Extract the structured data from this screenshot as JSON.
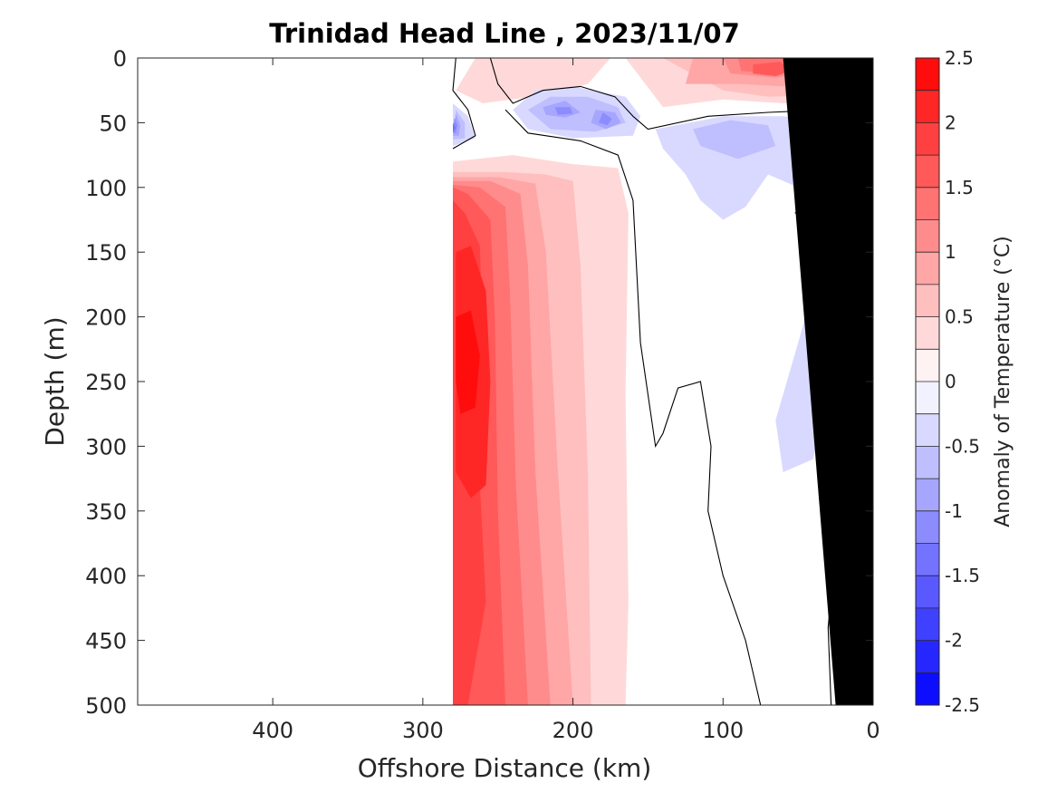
{
  "chart_data": {
    "type": "heatmap",
    "title": "Trinidad Head Line , 2023/11/07",
    "xlabel": "Offshore Distance (km)",
    "ylabel": "Depth (m)",
    "xlim": [
      490,
      0
    ],
    "ylim": [
      0,
      500
    ],
    "x_reversed": true,
    "y_reversed": true,
    "xticks": [
      400,
      300,
      200,
      100,
      0
    ],
    "yticks": [
      0,
      50,
      100,
      150,
      200,
      250,
      300,
      350,
      400,
      450,
      500
    ],
    "colorbar": {
      "label": "Anomaly of Temperature (°C)",
      "range": [
        -2.5,
        2.5
      ],
      "step": 0.25,
      "ticks": [
        2.5,
        2,
        1.5,
        1,
        0.5,
        0,
        -0.5,
        -1,
        -1.5,
        -2,
        -2.5
      ],
      "high_color": "#ff0000",
      "low_color": "#0000ff",
      "mid_color": "#ffffff"
    },
    "grid": false,
    "data_extent_x": [
      280,
      0
    ],
    "bathymetry_color": "#000000",
    "anomaly_regions": [
      {
        "level": 0.25,
        "points": [
          [
            280,
            80
          ],
          [
            240,
            75
          ],
          [
            200,
            82
          ],
          [
            170,
            85
          ],
          [
            163,
            120
          ],
          [
            165,
            260
          ],
          [
            163,
            420
          ],
          [
            165,
            500
          ],
          [
            280,
            500
          ]
        ]
      },
      {
        "level": 0.25,
        "points": [
          [
            265,
            0
          ],
          [
            175,
            0
          ],
          [
            190,
            20
          ],
          [
            215,
            28
          ],
          [
            260,
            35
          ],
          [
            278,
            25
          ]
        ]
      },
      {
        "level": 0.25,
        "points": [
          [
            165,
            0
          ],
          [
            10,
            0
          ],
          [
            10,
            30
          ],
          [
            60,
            35
          ],
          [
            100,
            32
          ],
          [
            140,
            38
          ]
        ]
      },
      {
        "level": 0.5,
        "points": [
          [
            280,
            88
          ],
          [
            245,
            88
          ],
          [
            218,
            90
          ],
          [
            200,
            95
          ],
          [
            195,
            160
          ],
          [
            190,
            320
          ],
          [
            188,
            500
          ],
          [
            280,
            500
          ]
        ]
      },
      {
        "level": 0.5,
        "points": [
          [
            140,
            0
          ],
          [
            12,
            0
          ],
          [
            12,
            28
          ],
          [
            70,
            30
          ],
          [
            100,
            25
          ]
        ]
      },
      {
        "level": 0.75,
        "points": [
          [
            280,
            92
          ],
          [
            250,
            92
          ],
          [
            225,
            97
          ],
          [
            218,
            150
          ],
          [
            210,
            320
          ],
          [
            200,
            500
          ],
          [
            280,
            500
          ]
        ]
      },
      {
        "level": 0.75,
        "points": [
          [
            120,
            0
          ],
          [
            40,
            0
          ],
          [
            30,
            15
          ],
          [
            60,
            22
          ],
          [
            90,
            20
          ],
          [
            125,
            20
          ]
        ]
      },
      {
        "level": 1.0,
        "points": [
          [
            280,
            95
          ],
          [
            255,
            95
          ],
          [
            235,
            105
          ],
          [
            230,
            160
          ],
          [
            225,
            320
          ],
          [
            215,
            500
          ],
          [
            280,
            500
          ]
        ]
      },
      {
        "level": 1.0,
        "points": [
          [
            100,
            0
          ],
          [
            50,
            0
          ],
          [
            40,
            10
          ],
          [
            65,
            15
          ],
          [
            95,
            12
          ]
        ]
      },
      {
        "level": 1.25,
        "points": [
          [
            280,
            98
          ],
          [
            262,
            100
          ],
          [
            245,
            115
          ],
          [
            242,
            180
          ],
          [
            238,
            330
          ],
          [
            230,
            500
          ],
          [
            280,
            500
          ]
        ]
      },
      {
        "level": 1.25,
        "points": [
          [
            90,
            0
          ],
          [
            55,
            0
          ],
          [
            50,
            10
          ],
          [
            70,
            12
          ],
          [
            88,
            10
          ]
        ]
      },
      {
        "level": 1.5,
        "points": [
          [
            280,
            100
          ],
          [
            270,
            105
          ],
          [
            255,
            125
          ],
          [
            252,
            200
          ],
          [
            250,
            350
          ],
          [
            245,
            500
          ],
          [
            280,
            500
          ]
        ]
      },
      {
        "level": 1.5,
        "points": [
          [
            80,
            5
          ],
          [
            62,
            3
          ],
          [
            55,
            10
          ],
          [
            65,
            14
          ],
          [
            80,
            12
          ]
        ]
      },
      {
        "level": 1.75,
        "points": [
          [
            280,
            110
          ],
          [
            272,
            120
          ],
          [
            262,
            145
          ],
          [
            260,
            220
          ],
          [
            262,
            330
          ],
          [
            258,
            420
          ],
          [
            270,
            500
          ],
          [
            280,
            500
          ]
        ]
      },
      {
        "level": 2.0,
        "points": [
          [
            278,
            150
          ],
          [
            268,
            145
          ],
          [
            258,
            180
          ],
          [
            255,
            250
          ],
          [
            258,
            330
          ],
          [
            268,
            340
          ],
          [
            278,
            320
          ]
        ]
      },
      {
        "level": 2.25,
        "points": [
          [
            278,
            200
          ],
          [
            268,
            195
          ],
          [
            262,
            230
          ],
          [
            265,
            270
          ],
          [
            275,
            275
          ],
          [
            278,
            250
          ]
        ]
      },
      {
        "level": -0.25,
        "points": [
          [
            280,
            35
          ],
          [
            270,
            45
          ],
          [
            265,
            62
          ],
          [
            280,
            68
          ]
        ]
      },
      {
        "level": -0.25,
        "points": [
          [
            240,
            40
          ],
          [
            225,
            25
          ],
          [
            200,
            22
          ],
          [
            165,
            30
          ],
          [
            155,
            45
          ],
          [
            160,
            60
          ],
          [
            200,
            62
          ],
          [
            230,
            55
          ]
        ]
      },
      {
        "level": -0.25,
        "points": [
          [
            145,
            55
          ],
          [
            100,
            45
          ],
          [
            60,
            45
          ],
          [
            20,
            50
          ],
          [
            18,
            70
          ],
          [
            35,
            80
          ],
          [
            50,
            100
          ],
          [
            70,
            90
          ],
          [
            85,
            115
          ],
          [
            100,
            125
          ],
          [
            115,
            110
          ],
          [
            125,
            90
          ],
          [
            140,
            70
          ]
        ]
      },
      {
        "level": -0.25,
        "points": [
          [
            35,
            150
          ],
          [
            25,
            175
          ],
          [
            28,
            220
          ],
          [
            30,
            260
          ],
          [
            40,
            310
          ],
          [
            60,
            320
          ],
          [
            65,
            280
          ],
          [
            55,
            240
          ],
          [
            45,
            200
          ]
        ]
      },
      {
        "level": -0.5,
        "points": [
          [
            278,
            40
          ],
          [
            272,
            50
          ],
          [
            272,
            62
          ],
          [
            280,
            63
          ]
        ]
      },
      {
        "level": -0.5,
        "points": [
          [
            230,
            40
          ],
          [
            215,
            30
          ],
          [
            190,
            30
          ],
          [
            170,
            38
          ],
          [
            165,
            50
          ],
          [
            185,
            57
          ],
          [
            215,
            55
          ]
        ]
      },
      {
        "level": -0.5,
        "points": [
          [
            120,
            55
          ],
          [
            95,
            48
          ],
          [
            70,
            52
          ],
          [
            65,
            68
          ],
          [
            90,
            78
          ],
          [
            115,
            68
          ]
        ]
      },
      {
        "level": -0.5,
        "points": [
          [
            35,
            210
          ],
          [
            28,
            225
          ],
          [
            30,
            250
          ],
          [
            36,
            245
          ]
        ]
      },
      {
        "level": -0.75,
        "points": [
          [
            278,
            43
          ],
          [
            275,
            52
          ],
          [
            276,
            60
          ],
          [
            280,
            60
          ]
        ]
      },
      {
        "level": -0.75,
        "points": [
          [
            220,
            38
          ],
          [
            205,
            33
          ],
          [
            195,
            42
          ],
          [
            205,
            46
          ],
          [
            218,
            44
          ]
        ]
      },
      {
        "level": -0.75,
        "points": [
          [
            185,
            40
          ],
          [
            172,
            42
          ],
          [
            168,
            50
          ],
          [
            178,
            55
          ],
          [
            188,
            50
          ]
        ]
      },
      {
        "level": -1.0,
        "points": [
          [
            279,
            46
          ],
          [
            277,
            52
          ],
          [
            278,
            58
          ],
          [
            280,
            58
          ]
        ]
      },
      {
        "level": -1.0,
        "points": [
          [
            212,
            38
          ],
          [
            202,
            38
          ],
          [
            200,
            43
          ],
          [
            210,
            44
          ]
        ]
      },
      {
        "level": -1.0,
        "points": [
          [
            180,
            42
          ],
          [
            174,
            47
          ],
          [
            177,
            52
          ],
          [
            183,
            50
          ]
        ]
      },
      {
        "level": -1.25,
        "points": [
          [
            280,
            50
          ],
          [
            278,
            54
          ],
          [
            280,
            57
          ]
        ]
      }
    ],
    "zero_contours": [
      [
        [
          278,
          0
        ],
        [
          280,
          25
        ],
        [
          270,
          40
        ],
        [
          265,
          60
        ],
        [
          280,
          70
        ]
      ],
      [
        [
          255,
          0
        ],
        [
          250,
          20
        ],
        [
          240,
          35
        ],
        [
          220,
          25
        ],
        [
          195,
          22
        ],
        [
          172,
          30
        ],
        [
          160,
          45
        ],
        [
          150,
          55
        ],
        [
          110,
          45
        ],
        [
          70,
          42
        ],
        [
          30,
          40
        ],
        [
          18,
          38
        ],
        [
          10,
          42
        ]
      ],
      [
        [
          245,
          40
        ],
        [
          230,
          58
        ],
        [
          195,
          64
        ],
        [
          170,
          75
        ],
        [
          160,
          110
        ],
        [
          155,
          220
        ],
        [
          145,
          300
        ],
        [
          140,
          290
        ],
        [
          130,
          255
        ],
        [
          115,
          250
        ],
        [
          108,
          300
        ],
        [
          110,
          350
        ],
        [
          100,
          400
        ],
        [
          85,
          450
        ],
        [
          75,
          500
        ]
      ],
      [
        [
          52,
          120
        ],
        [
          48,
          115
        ],
        [
          46,
          122
        ]
      ],
      [
        [
          30,
          320
        ],
        [
          25,
          380
        ],
        [
          30,
          440
        ],
        [
          28,
          500
        ]
      ]
    ],
    "bathymetry": [
      [
        0,
        0
      ],
      [
        0,
        500
      ],
      [
        25,
        500
      ],
      [
        60,
        0
      ]
    ]
  }
}
